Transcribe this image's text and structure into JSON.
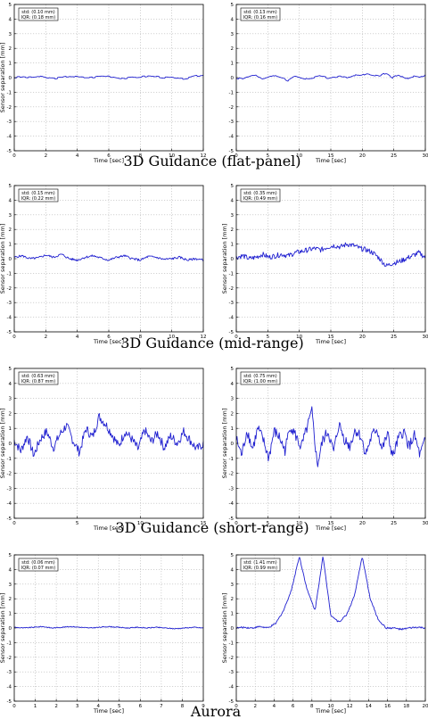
{
  "group_titles": [
    "3D Guidance (flat-panel)",
    "3D Guidance (mid-range)",
    "3D Guidance (short-range)",
    "Aurora"
  ],
  "colors": {
    "series": "#1f1fd0",
    "grid": "#b8b8b8",
    "frame": "#000000"
  },
  "chart_data": [
    {
      "type": "line",
      "group": "3D Guidance (flat-panel)",
      "xlabel": "Time [sec]",
      "ylabel": "Sensor separation [mm]",
      "xlim": [
        0,
        12
      ],
      "ylim": [
        -5,
        5
      ],
      "xticks": [
        0,
        2,
        4,
        6,
        8,
        10,
        12
      ],
      "yticks": [
        -5,
        -4,
        -3,
        -2,
        -1,
        0,
        1,
        2,
        3,
        4,
        5
      ],
      "grid": true,
      "legend": {
        "line1": "std: (0.10 mm)",
        "line2": "IQR: (0.18 mm)",
        "position": "top-left"
      },
      "series": [
        {
          "stats": {
            "std": 0.1,
            "iqr": 0.18
          },
          "y_range_mm": [
            -0.2,
            0.3
          ],
          "shape": "flat-steps",
          "values": [
            0.0,
            0.05,
            0.0,
            0.08,
            0.0,
            -0.05,
            0.0,
            0.1,
            0.05,
            0.0,
            0.02,
            0.1,
            0.1,
            0.0,
            -0.05,
            0.0,
            0.05,
            0.1,
            0.08,
            0.0,
            0.0,
            -0.1,
            -0.05,
            0.1,
            0.15
          ]
        }
      ]
    },
    {
      "type": "line",
      "group": "3D Guidance (flat-panel)",
      "xlabel": "Time [sec]",
      "ylabel": "",
      "xlim": [
        0,
        30
      ],
      "ylim": [
        -5,
        5
      ],
      "xticks": [
        0,
        5,
        10,
        15,
        20,
        25,
        30
      ],
      "yticks": [
        -5,
        -4,
        -3,
        -2,
        -1,
        0,
        1,
        2,
        3,
        4,
        5
      ],
      "grid": true,
      "legend": {
        "line1": "std: (0.13 mm)",
        "line2": "IQR: (0.16 mm)",
        "position": "top-left"
      },
      "series": [
        {
          "stats": {
            "std": 0.13,
            "iqr": 0.16
          },
          "y_range_mm": [
            -0.3,
            0.35
          ],
          "shape": "noisy-steps",
          "values": [
            0.0,
            -0.1,
            0.1,
            0.2,
            -0.1,
            0.0,
            0.15,
            0.0,
            -0.2,
            0.1,
            0.0,
            -0.1,
            0.0,
            0.1,
            0.0,
            0.05,
            0.1,
            0.0,
            0.2,
            0.1,
            0.3,
            0.2,
            0.1,
            0.3,
            0.0,
            0.2,
            -0.1,
            0.1,
            0.0,
            0.2
          ]
        }
      ]
    },
    {
      "type": "line",
      "group": "3D Guidance (mid-range)",
      "xlabel": "Time [sec]",
      "ylabel": "Sensor separation [mm]",
      "xlim": [
        0,
        12
      ],
      "ylim": [
        -5,
        5
      ],
      "xticks": [
        0,
        2,
        4,
        6,
        8,
        10,
        12
      ],
      "yticks": [
        -5,
        -4,
        -3,
        -2,
        -1,
        0,
        1,
        2,
        3,
        4,
        5
      ],
      "grid": true,
      "legend": {
        "line1": "std: (0.15 mm)",
        "line2": "IQR: (0.22 mm)",
        "position": "top-left"
      },
      "series": [
        {
          "stats": {
            "std": 0.15,
            "iqr": 0.22
          },
          "y_range_mm": [
            -0.3,
            0.35
          ],
          "shape": "wavy",
          "values": [
            0.1,
            0.2,
            0.0,
            0.05,
            0.25,
            0.1,
            0.3,
            0.0,
            -0.1,
            0.1,
            0.2,
            0.05,
            -0.1,
            0.1,
            0.2,
            0.0,
            -0.1,
            0.15,
            0.1,
            -0.05,
            0.0,
            0.1,
            -0.1,
            0.0,
            -0.1
          ]
        }
      ]
    },
    {
      "type": "line",
      "group": "3D Guidance (mid-range)",
      "xlabel": "Time [sec]",
      "ylabel": "Sensor separation [mm]",
      "xlim": [
        0,
        30
      ],
      "ylim": [
        -5,
        5
      ],
      "xticks": [
        0,
        5,
        10,
        15,
        20,
        25,
        30
      ],
      "yticks": [
        -5,
        -4,
        -3,
        -2,
        -1,
        0,
        1,
        2,
        3,
        4,
        5
      ],
      "grid": true,
      "legend": {
        "line1": "std: (0.35 mm)",
        "line2": "IQR: (0.49 mm)",
        "position": "top-left"
      },
      "series": [
        {
          "stats": {
            "std": 0.35,
            "iqr": 0.49
          },
          "y_range_mm": [
            -0.7,
            1.1
          ],
          "shape": "drift-hump",
          "values": [
            0.1,
            0.2,
            0.0,
            0.1,
            0.3,
            0.1,
            0.2,
            0.3,
            0.2,
            0.4,
            0.5,
            0.6,
            0.7,
            0.6,
            0.8,
            0.9,
            0.8,
            1.0,
            0.9,
            0.7,
            0.6,
            0.4,
            0.0,
            -0.5,
            -0.3,
            -0.2,
            0.0,
            0.2,
            0.4,
            0.1
          ]
        }
      ]
    },
    {
      "type": "line",
      "group": "3D Guidance (short-range)",
      "xlabel": "Time [sec]",
      "ylabel": "Sensor separation [mm]",
      "xlim": [
        0,
        15
      ],
      "ylim": [
        -5,
        5
      ],
      "xticks": [
        0,
        5,
        10,
        15
      ],
      "yticks": [
        -5,
        -4,
        -3,
        -2,
        -1,
        0,
        1,
        2,
        3,
        4,
        5
      ],
      "grid": true,
      "legend": {
        "line1": "std: (0.63 mm)",
        "line2": "IQR: (0.87 mm)",
        "position": "top-left"
      },
      "series": [
        {
          "stats": {
            "std": 0.63,
            "iqr": 0.87
          },
          "y_range_mm": [
            -1.2,
            1.9
          ],
          "shape": "noisy",
          "values": [
            0.2,
            -0.5,
            0.5,
            -0.8,
            0.3,
            0.8,
            -0.3,
            0.6,
            1.2,
            0.2,
            -0.6,
            1.0,
            0.4,
            1.8,
            1.3,
            0.6,
            -0.2,
            0.8,
            0.3,
            -0.4,
            0.9,
            0.1,
            0.7,
            -0.3,
            0.5,
            0.0,
            0.8,
            0.2,
            -0.4,
            0.0
          ]
        }
      ]
    },
    {
      "type": "line",
      "group": "3D Guidance (short-range)",
      "xlabel": "Time [sec]",
      "ylabel": "Sensor separation [mm]",
      "xlim": [
        0,
        30
      ],
      "ylim": [
        -5,
        5
      ],
      "xticks": [
        0,
        5,
        10,
        15,
        20,
        25,
        30
      ],
      "yticks": [
        -5,
        -4,
        -3,
        -2,
        -1,
        0,
        1,
        2,
        3,
        4,
        5
      ],
      "grid": true,
      "legend": {
        "line1": "std: (0.75 mm)",
        "line2": "IQR: (1.00 mm)",
        "position": "top-left"
      },
      "series": [
        {
          "stats": {
            "std": 0.75,
            "iqr": 1.0
          },
          "y_range_mm": [
            -1.6,
            2.2
          ],
          "shape": "noisy",
          "values": [
            0.3,
            -0.8,
            0.9,
            -0.4,
            1.0,
            0.2,
            -1.0,
            0.8,
            0.4,
            -0.5,
            1.2,
            0.5,
            -0.3,
            0.9,
            2.1,
            -1.5,
            0.2,
            0.8,
            -0.6,
            1.3,
            0.3,
            -0.2,
            0.9,
            0.5,
            -0.7,
            0.4,
            1.0,
            -0.4,
            0.6,
            -0.9,
            0.3,
            0.8,
            -0.2,
            0.5,
            -0.8,
            0.2
          ]
        }
      ]
    },
    {
      "type": "line",
      "group": "Aurora",
      "xlabel": "Time [sec]",
      "ylabel": "Sensor separation [mm]",
      "xlim": [
        0,
        9
      ],
      "ylim": [
        -5,
        5
      ],
      "xticks": [
        0,
        1,
        2,
        3,
        4,
        5,
        6,
        7,
        8,
        9
      ],
      "yticks": [
        -5,
        -4,
        -3,
        -2,
        -1,
        0,
        1,
        2,
        3,
        4,
        5
      ],
      "grid": true,
      "legend": {
        "line1": "std: (0.06 mm)",
        "line2": "IQR: (0.07 mm)",
        "position": "top-left"
      },
      "series": [
        {
          "stats": {
            "std": 0.06,
            "iqr": 0.07
          },
          "y_range_mm": [
            -0.1,
            0.15
          ],
          "shape": "near-flat",
          "values": [
            0.05,
            0.0,
            0.05,
            0.1,
            0.0,
            0.05,
            0.1,
            0.05,
            0.0,
            0.05,
            0.1,
            0.05,
            0.0,
            0.05,
            0.0,
            0.05,
            0.0,
            -0.05,
            0.0,
            0.05,
            0.0
          ]
        }
      ]
    },
    {
      "type": "line",
      "group": "Aurora",
      "xlabel": "Time [sec]",
      "ylabel": "Sensor separation [mm]",
      "xlim": [
        0,
        20
      ],
      "ylim": [
        -5,
        5
      ],
      "xticks": [
        0,
        2,
        4,
        6,
        8,
        10,
        12,
        14,
        16,
        18,
        20
      ],
      "yticks": [
        -5,
        -4,
        -3,
        -2,
        -1,
        0,
        1,
        2,
        3,
        4,
        5
      ],
      "grid": true,
      "legend": {
        "line1": "std: (1.41 mm)",
        "line2": "IQR: (0.99 mm)",
        "position": "top-left"
      },
      "series": [
        {
          "stats": {
            "std": 1.41,
            "iqr": 0.99
          },
          "y_range_mm": [
            -0.2,
            5.0
          ],
          "shape": "three-peaks",
          "peaks_sec": [
            6.8,
            9.9,
            14.8
          ],
          "peak_mm": 5.0,
          "values": [
            0.0,
            0.05,
            0.0,
            0.1,
            0.0,
            0.3,
            1.2,
            2.6,
            4.9,
            2.6,
            1.2,
            4.9,
            0.9,
            0.4,
            0.9,
            2.2,
            4.9,
            2.0,
            0.6,
            0.0,
            0.0,
            -0.1,
            0.0,
            0.05,
            0.0
          ]
        }
      ]
    }
  ]
}
